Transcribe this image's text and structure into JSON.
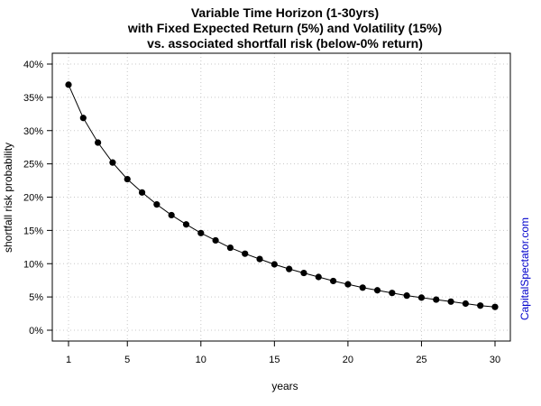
{
  "chart_data": {
    "type": "line",
    "title_lines": [
      "Variable Time Horizon (1-30yrs)",
      "with Fixed Expected Return (5%) and Volatility (15%)",
      "vs. associated shortfall risk (below-0% return)"
    ],
    "xlabel": "years",
    "ylabel": "shortfall risk probability",
    "xlim": [
      1,
      30
    ],
    "ylim": [
      0,
      0.4
    ],
    "x_ticks": [
      1,
      5,
      10,
      15,
      20,
      25,
      30
    ],
    "y_ticks": [
      0,
      0.05,
      0.1,
      0.15,
      0.2,
      0.25,
      0.3,
      0.35,
      0.4
    ],
    "y_tick_labels": [
      "0%",
      "5%",
      "10%",
      "15%",
      "20%",
      "25%",
      "30%",
      "35%",
      "40%"
    ],
    "grid": true,
    "series": [
      {
        "x": [
          1,
          2,
          3,
          4,
          5,
          6,
          7,
          8,
          9,
          10,
          11,
          12,
          13,
          14,
          15,
          16,
          17,
          18,
          19,
          20,
          21,
          22,
          23,
          24,
          25,
          26,
          27,
          28,
          29,
          30
        ],
        "values": [
          0.369,
          0.319,
          0.282,
          0.252,
          0.227,
          0.207,
          0.189,
          0.173,
          0.159,
          0.146,
          0.135,
          0.124,
          0.115,
          0.107,
          0.099,
          0.092,
          0.086,
          0.08,
          0.074,
          0.069,
          0.064,
          0.06,
          0.056,
          0.052,
          0.049,
          0.046,
          0.043,
          0.04,
          0.037,
          0.035
        ]
      }
    ],
    "colors": {
      "line": "#000000",
      "grid": "#c8c8c8"
    }
  },
  "watermark": "CapitalSpectator.com"
}
